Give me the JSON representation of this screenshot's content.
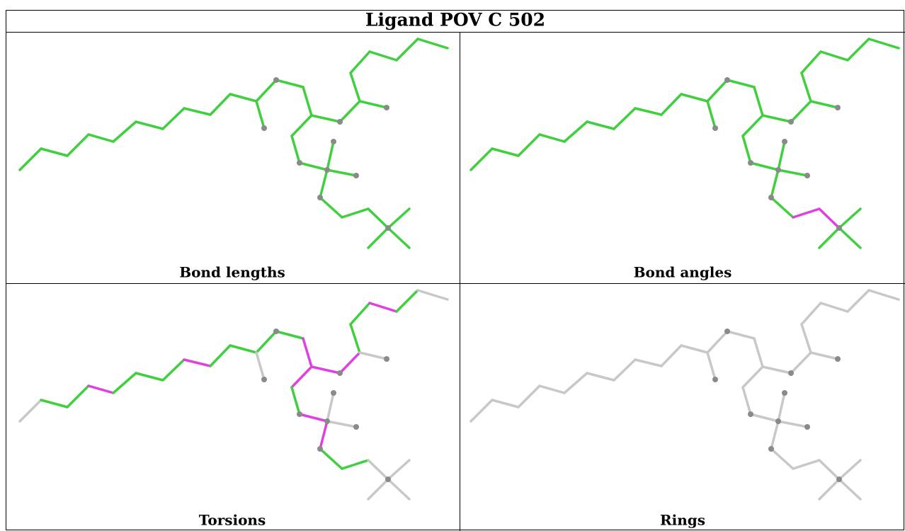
{
  "title": "Ligand POV C 502",
  "panels": [
    "Bond lengths",
    "Bond angles",
    "Torsions",
    "Rings"
  ]
}
